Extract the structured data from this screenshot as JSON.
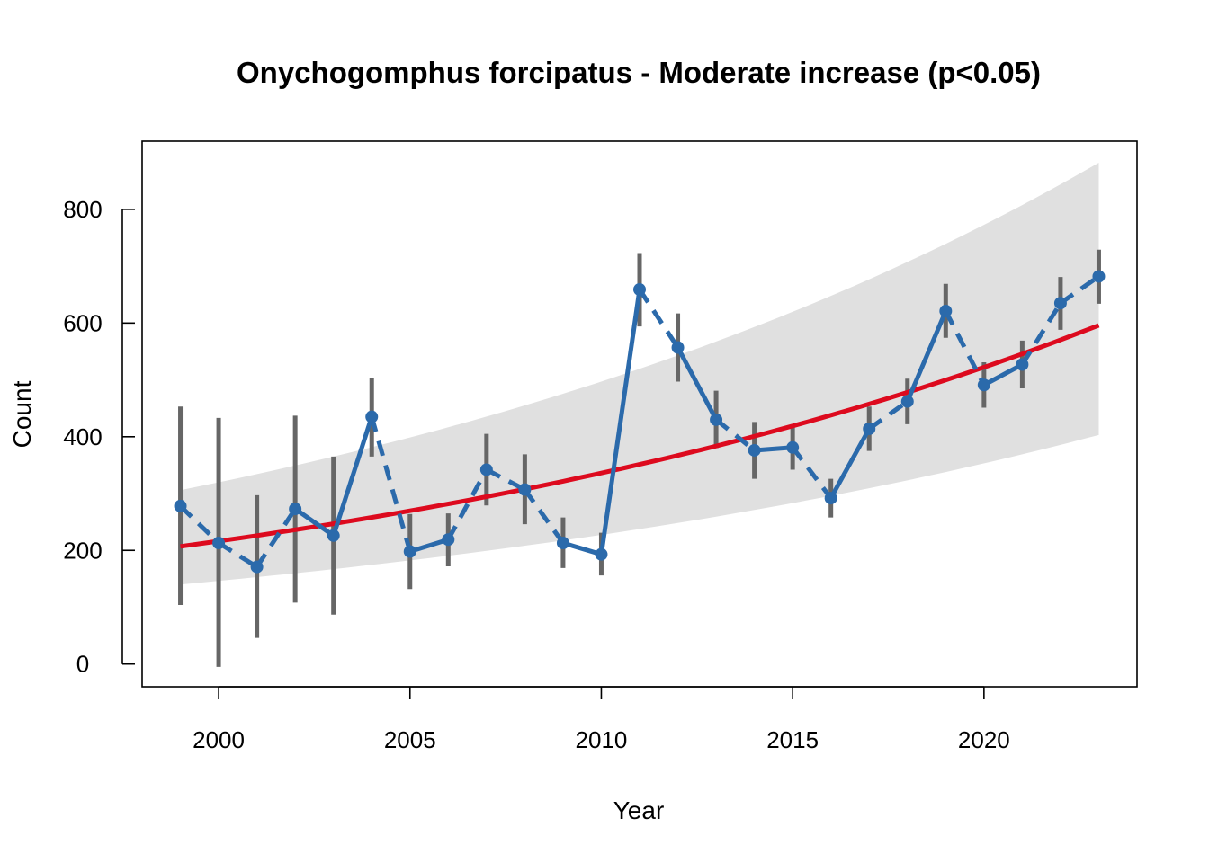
{
  "chart_data": {
    "type": "line",
    "title": "Onychogomphus forcipatus - Moderate increase (p<0.05)",
    "xlabel": "Year",
    "ylabel": "Count",
    "xlim": [
      1998,
      2024
    ],
    "ylim": [
      -40,
      920
    ],
    "x_ticks": [
      2000,
      2005,
      2010,
      2015,
      2020
    ],
    "y_ticks": [
      0,
      200,
      400,
      600,
      800
    ],
    "grid": false,
    "legend": "none",
    "colors": {
      "observed": "#2b6aab",
      "error_bar": "#666666",
      "trend": "#dd0a1e",
      "confidence_band": "#e0e0e0"
    },
    "series": [
      {
        "values": [
          {
            "x": 1999,
            "y": 278,
            "lo": 104,
            "hi": 453,
            "imputed": true
          },
          {
            "x": 2000,
            "y": 213,
            "lo": -5,
            "hi": 433,
            "imputed": true
          },
          {
            "x": 2001,
            "y": 171,
            "lo": 46,
            "hi": 297,
            "imputed": true
          },
          {
            "x": 2002,
            "y": 273,
            "lo": 108,
            "hi": 437,
            "imputed": true
          },
          {
            "x": 2003,
            "y": 226,
            "lo": 87,
            "hi": 365,
            "imputed": false
          },
          {
            "x": 2004,
            "y": 435,
            "lo": 365,
            "hi": 503,
            "imputed": false
          },
          {
            "x": 2005,
            "y": 198,
            "lo": 132,
            "hi": 264,
            "imputed": true
          },
          {
            "x": 2006,
            "y": 219,
            "lo": 172,
            "hi": 265,
            "imputed": false
          },
          {
            "x": 2007,
            "y": 342,
            "lo": 279,
            "hi": 405,
            "imputed": true
          },
          {
            "x": 2008,
            "y": 307,
            "lo": 246,
            "hi": 369,
            "imputed": true
          },
          {
            "x": 2009,
            "y": 213,
            "lo": 169,
            "hi": 258,
            "imputed": true
          },
          {
            "x": 2010,
            "y": 193,
            "lo": 156,
            "hi": 231,
            "imputed": false
          },
          {
            "x": 2011,
            "y": 659,
            "lo": 594,
            "hi": 723,
            "imputed": false
          },
          {
            "x": 2012,
            "y": 557,
            "lo": 497,
            "hi": 617,
            "imputed": true
          },
          {
            "x": 2013,
            "y": 430,
            "lo": 380,
            "hi": 481,
            "imputed": false
          },
          {
            "x": 2014,
            "y": 376,
            "lo": 326,
            "hi": 426,
            "imputed": true
          },
          {
            "x": 2015,
            "y": 381,
            "lo": 342,
            "hi": 420,
            "imputed": false
          },
          {
            "x": 2016,
            "y": 292,
            "lo": 258,
            "hi": 326,
            "imputed": true
          },
          {
            "x": 2017,
            "y": 414,
            "lo": 375,
            "hi": 453,
            "imputed": false
          },
          {
            "x": 2018,
            "y": 462,
            "lo": 422,
            "hi": 502,
            "imputed": true
          },
          {
            "x": 2019,
            "y": 621,
            "lo": 574,
            "hi": 669,
            "imputed": false
          },
          {
            "x": 2020,
            "y": 491,
            "lo": 451,
            "hi": 531,
            "imputed": true
          },
          {
            "x": 2021,
            "y": 527,
            "lo": 485,
            "hi": 569,
            "imputed": false
          },
          {
            "x": 2022,
            "y": 635,
            "lo": 588,
            "hi": 681,
            "imputed": true
          },
          {
            "x": 2023,
            "y": 682,
            "lo": 634,
            "hi": 729,
            "imputed": true
          }
        ]
      },
      {
        "x": [
          1999,
          2023
        ],
        "values": [
          207,
          596
        ],
        "band_lower": [
          140,
          403
        ],
        "band_upper": [
          306,
          882
        ]
      }
    ]
  }
}
